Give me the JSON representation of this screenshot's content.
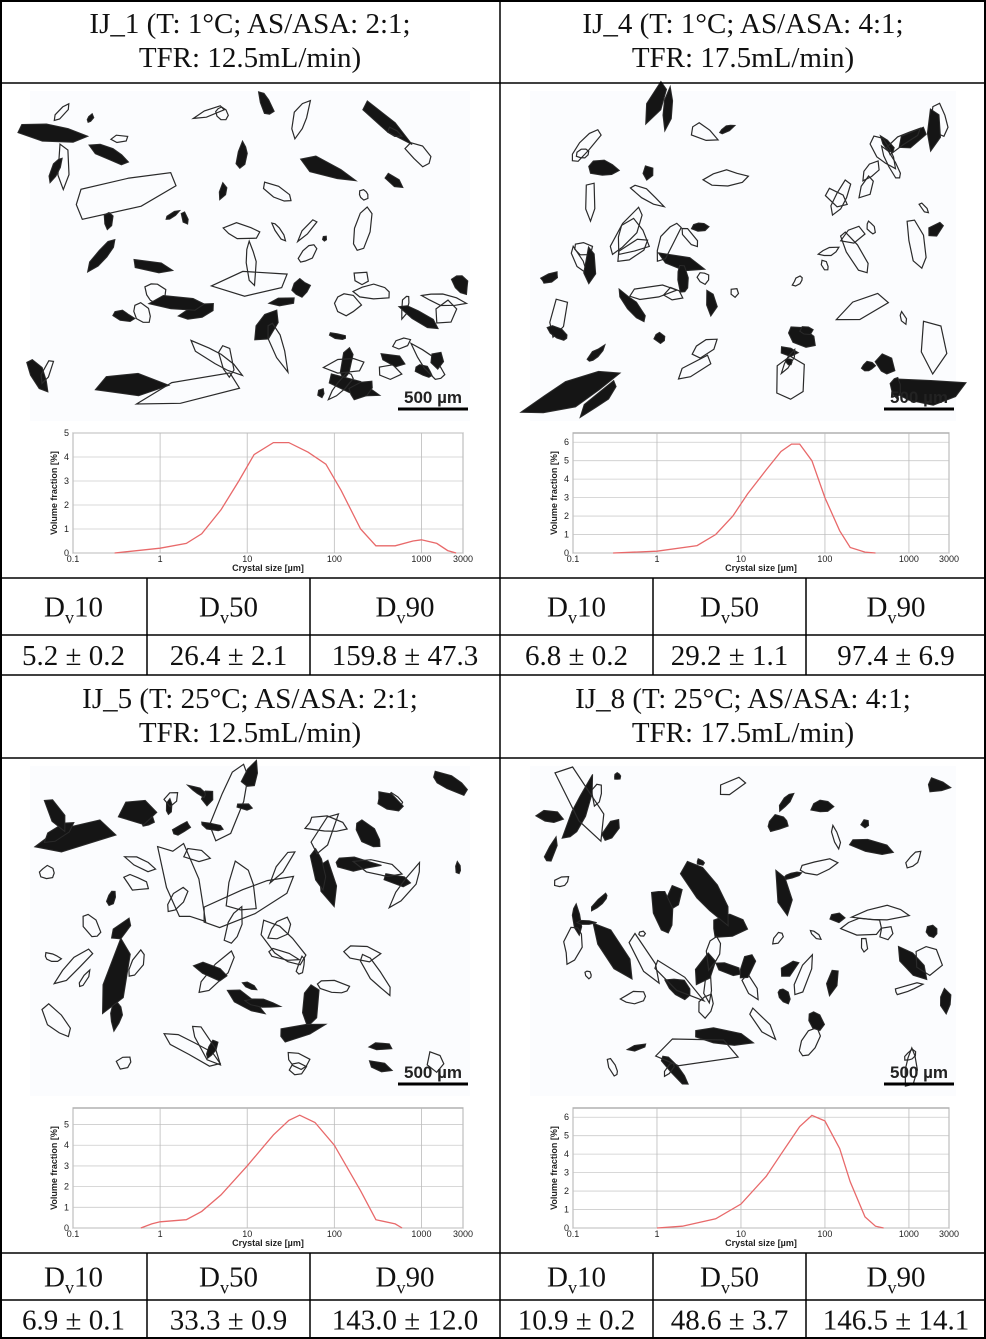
{
  "panels": [
    {
      "title": [
        "IJ_1 (T: 1°C; AS/ASA: 2:1;",
        "TFR: 12.5mL/min)"
      ],
      "scale_bar": "500 µm",
      "chart_data": {
        "type": "line",
        "xlabel": "Crystal size [µm]",
        "ylabel": "Volume fraction [%]",
        "xscale": "log",
        "xlim": [
          0.1,
          3000
        ],
        "xticks": [
          0.1,
          1,
          10,
          100,
          1000,
          3000
        ],
        "ylim": [
          0,
          5
        ],
        "yticks": [
          0,
          1,
          2,
          3,
          4,
          5
        ],
        "grid": true,
        "series": [
          {
            "color": "#e8696a",
            "x": [
              0.3,
              1,
              2,
              3,
              5,
              8,
              12,
              20,
              30,
              50,
              80,
              120,
              200,
              300,
              500,
              800,
              1000,
              1500,
              2000,
              2500
            ],
            "values": [
              0,
              0.2,
              0.4,
              0.8,
              1.8,
              3,
              4.1,
              4.6,
              4.6,
              4.2,
              3.7,
              2.6,
              1,
              0.3,
              0.3,
              0.5,
              0.55,
              0.4,
              0.1,
              0
            ]
          }
        ]
      },
      "stats": {
        "headers": [
          {
            "base": "D",
            "sub": "v",
            "suffix": "10"
          },
          {
            "base": "D",
            "sub": "v",
            "suffix": "50"
          },
          {
            "base": "D",
            "sub": "v",
            "suffix": "90"
          }
        ],
        "values": [
          "5.2 ± 0.2",
          "26.4 ± 2.1",
          "159.8 ± 47.3"
        ]
      }
    },
    {
      "title": [
        "IJ_4 (T: 1°C; AS/ASA: 4:1;",
        "TFR: 17.5mL/min)"
      ],
      "scale_bar": "500 µm",
      "chart_data": {
        "type": "line",
        "xlabel": "Crystal size [µm]",
        "ylabel": "Volume fraction [%]",
        "xscale": "log",
        "xlim": [
          0.1,
          3000
        ],
        "xticks": [
          0.1,
          1,
          10,
          100,
          1000,
          3000
        ],
        "ylim": [
          0,
          6.5
        ],
        "yticks": [
          0,
          1,
          2,
          3,
          4,
          5,
          6
        ],
        "grid": true,
        "series": [
          {
            "color": "#e8696a",
            "x": [
              0.3,
              1,
              3,
              5,
              8,
              12,
              20,
              30,
              40,
              50,
              70,
              100,
              150,
              200,
              300,
              400
            ],
            "values": [
              0,
              0.1,
              0.4,
              1,
              2,
              3.2,
              4.5,
              5.5,
              5.9,
              5.9,
              5,
              3,
              1.2,
              0.3,
              0.05,
              0
            ]
          }
        ]
      },
      "stats": {
        "headers": [
          {
            "base": "D",
            "sub": "v",
            "suffix": "10"
          },
          {
            "base": "D",
            "sub": "v",
            "suffix": "50"
          },
          {
            "base": "D",
            "sub": "v",
            "suffix": "90"
          }
        ],
        "values": [
          "6.8 ± 0.2",
          "29.2 ± 1.1",
          "97.4 ± 6.9"
        ]
      }
    },
    {
      "title": [
        "IJ_5 (T: 25°C; AS/ASA: 2:1;",
        "TFR: 12.5mL/min)"
      ],
      "scale_bar": "500 µm",
      "chart_data": {
        "type": "line",
        "xlabel": "Crystal size [µm]",
        "ylabel": "Volume fraction [%]",
        "xscale": "log",
        "xlim": [
          0.1,
          3000
        ],
        "xticks": [
          0.1,
          1,
          10,
          100,
          1000,
          3000
        ],
        "ylim": [
          0,
          5.8
        ],
        "yticks": [
          0,
          1,
          2,
          3,
          4,
          5
        ],
        "grid": true,
        "series": [
          {
            "color": "#e8696a",
            "x": [
              0.6,
              0.8,
              1,
              2,
              3,
              5,
              10,
              20,
              30,
              40,
              60,
              100,
              200,
              300,
              500,
              600
            ],
            "values": [
              0,
              0.2,
              0.3,
              0.4,
              0.8,
              1.6,
              3,
              4.5,
              5.2,
              5.45,
              5.1,
              4,
              1.8,
              0.4,
              0.2,
              0
            ]
          }
        ]
      },
      "stats": {
        "headers": [
          {
            "base": "D",
            "sub": "v",
            "suffix": "10"
          },
          {
            "base": "D",
            "sub": "v",
            "suffix": "50"
          },
          {
            "base": "D",
            "sub": "v",
            "suffix": "90"
          }
        ],
        "values": [
          "6.9 ± 0.1",
          "33.3 ± 0.9",
          "143.0 ± 12.0"
        ]
      }
    },
    {
      "title": [
        "IJ_8 (T: 25°C; AS/ASA: 4:1;",
        "TFR: 17.5mL/min)"
      ],
      "scale_bar": "500 µm",
      "chart_data": {
        "type": "line",
        "xlabel": "Crystal size [µm]",
        "ylabel": "Volume fraction [%]",
        "xscale": "log",
        "xlim": [
          0.1,
          3000
        ],
        "xticks": [
          0.1,
          1,
          10,
          100,
          1000,
          3000
        ],
        "ylim": [
          0,
          6.5
        ],
        "yticks": [
          0,
          1,
          2,
          3,
          4,
          5,
          6
        ],
        "grid": true,
        "series": [
          {
            "color": "#e8696a",
            "x": [
              1,
              2,
              5,
              10,
              20,
              30,
              50,
              70,
              100,
              150,
              200,
              300,
              400,
              500
            ],
            "values": [
              0,
              0.1,
              0.5,
              1.3,
              2.8,
              4,
              5.5,
              6.1,
              5.8,
              4.3,
              2.5,
              0.6,
              0.1,
              0
            ]
          }
        ]
      },
      "stats": {
        "headers": [
          {
            "base": "D",
            "sub": "v",
            "suffix": "10"
          },
          {
            "base": "D",
            "sub": "v",
            "suffix": "50"
          },
          {
            "base": "D",
            "sub": "v",
            "suffix": "90"
          }
        ],
        "values": [
          "10.9 ± 0.2",
          "48.6 ± 3.7",
          "146.5 ± 14.1"
        ]
      }
    }
  ]
}
